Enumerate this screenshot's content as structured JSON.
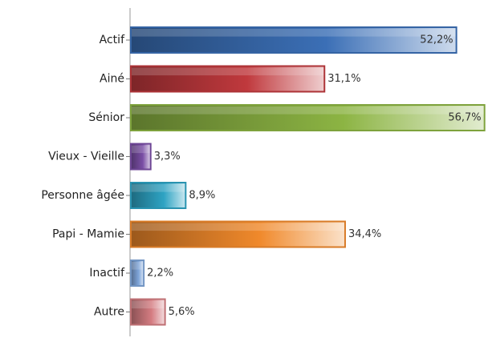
{
  "chart_data": {
    "type": "bar",
    "orientation": "horizontal",
    "categories": [
      "Actif",
      "Ainé",
      "Sénior",
      "Vieux - Vieille",
      "Personne âgée",
      "Papi - Mamie",
      "Inactif",
      "Autre"
    ],
    "values": [
      52.2,
      31.1,
      56.7,
      3.3,
      8.9,
      34.4,
      2.2,
      5.6
    ],
    "value_labels": [
      "52,2%",
      "31,1%",
      "56,7%",
      "3,3%",
      "8,9%",
      "34,4%",
      "2,2%",
      "5,6%"
    ],
    "colors": [
      "#3b6fb6",
      "#c0393d",
      "#8cb443",
      "#7a4ea5",
      "#2ea3c3",
      "#f0892b",
      "#7fa5d9",
      "#d47c81"
    ],
    "xlim": [
      0,
      57
    ]
  }
}
